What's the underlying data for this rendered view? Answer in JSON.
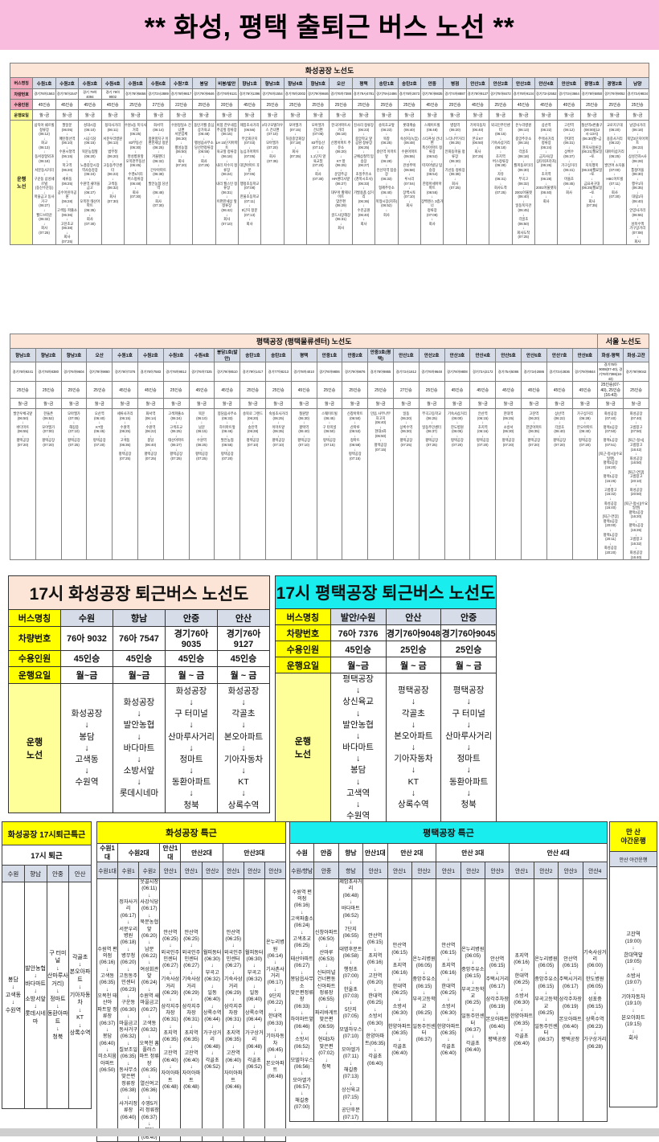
{
  "page_title": "** 화성, 평택 출퇴근 버스 노선 **",
  "labels": {
    "name": "버스명칭",
    "vehicle": "차량번호",
    "capacity": "수용인원",
    "days": "운행요일",
    "route": "운행 노선",
    "route2": "운행\n노선"
  },
  "hwaseong": {
    "title": "화성공장 노선도",
    "columns": [
      {
        "name": "수원1호",
        "vehicle": "경기76아1563",
        "capacity": "45인승",
        "days": "월~금",
        "route": "삼익아 쉐르빌 정류장\n(06:12)\n↓\n화교\n(06:13)\n↓\n동서정형외과\n(06:18)\n↓\n서문동사거리\n↓\n구운동 삼성쉐르빌\n(동신수운동)\n↓\n마을금고 동사거구\n(06:27)\n↓\n월드브라운\n(06:32)\n↓\n회사\n(07:25)"
      },
      {
        "name": "수원2호",
        "vehicle": "경기76아1547",
        "capacity": "45인승",
        "days": "월~금",
        "route": "팔달문\n(06:05)\n↓\n매탄청선역\n(06:10)\n↓\n수원시청역\n(06:15)\n↓\n학고역\n(06:20)\n↓\n세류동\n(06:25)\n↓\n공수어린이공원\n(06:28)\n↓\n고색동 파출소\n(06:36)\n↓\n고잔초교\n(06:38)\n↓\n회사\n(07:25)"
      },
      {
        "name": "수원3호",
        "vehicle": "경기 79아 4094",
        "capacity": "45인승",
        "days": "월~금",
        "route": "성대시장\n(06:10)\n↓\n시공식당\n(06:15)\n↓\n북문농협앞\n(06:20)\n↓\n노총중앙시장\n역사승강장\n(06:24)\n↓\n수원역 새마을금고\n(06:27)\n↓\n오목천 태산아파트\n(06:35)\n↓\n회사\n(07:30)"
      },
      {
        "name": "수원4호",
        "vehicle": "경기 76아 9002",
        "capacity": "45인승",
        "days": "월~금",
        "route": "정자사거리\n(06:11)\n↓\n서문우리병원\n(06:13)\n↓\n법무청\n(06:20)\n↓\n고등동주민센터\n(06:23)\n↓\n고색동\n(06:32)\n↓\n회사\n(07:30)"
      },
      {
        "name": "수원5호",
        "vehicle": "경기76아5656",
        "capacity": "25인승",
        "days": "월~금",
        "route": "수원1동 목식사거리\n(06:25)\n↓\n83부동산\n(06:30)\n↓\n명성병원앞\n오목천부동산\n(06:45)\n↓\n수영5거리\n버스정류장\n(06:48)\n↓\n회사\n(07:30)"
      },
      {
        "name": "수원6호",
        "vehicle": "경기73사2889",
        "capacity": "27인승",
        "days": "월~금",
        "route": "화서역\n(06:14)\n↓\n정원앞지구 이\n편한세상 정문\n(06:25)\n↓\n겨울팬더\n(06:32)\n↓\n간우아파트\n(06:38)\n↓\n발안농협 당선역\n(06:48)\n↓\n회사\n(07:30)"
      },
      {
        "name": "수원7호",
        "vehicle": "경기76아9817",
        "capacity": "22인승",
        "days": "월~금",
        "route": "수원정일소 건너편\n서문입체\n(06:30)\n↓\n팽성농협\n(06:50)\n↓\n회사\n(07:20)"
      },
      {
        "name": "봉담",
        "vehicle": "경기76아9646",
        "capacity": "25인승",
        "days": "월~금",
        "route": "동탄거월 중심\n상가육교\n(06:48)\n↓\n팽성읍사무소\n당선연정류장\n(06:55)\n↓\n회사\n(07:25)"
      },
      {
        "name": "비봉/발안",
        "vehicle": "경기76아9121",
        "capacity": "20인승",
        "days": "월~금",
        "route": "비봉 한우네집\n주공앞 정류장\n(06:15)\n↓\nLH 15단지아파트\n육교앞 정류장\n(06:18)\n↓\n내리 저수지 정류장\n(06:24)\n↓\n내리 월스턴 정류장\n(06:31)\n↓\n이편한세상 앞 정류장\n(06:42)\n↓\n회사\n(07:10)"
      },
      {
        "name": "향남1호",
        "vehicle": "경기76아1396",
        "capacity": "45인승",
        "days": "월~금",
        "route": "제암초사거리\n(06:56)\n↓\n무궁화단지\n(07:03)\n↓\n농심가아파트\n(07:05)\n↓\n대양아파트 후문\n(07:06)\n↓\n행정초등학교\n(07:08)\n↓\n한울초등학교\n(07:11)\n↓\n5단지 정문\n(07:13)\n↓\n회사"
      },
      {
        "name": "향남3호",
        "vehicle": "경기76아1554",
        "capacity": "25인승",
        "days": "월~금",
        "route": "2차구모델하우\n스 건너편\n(07:10)\n↓\n모아엘가\n(07:20)\n↓\n회사\n(07:35)"
      },
      {
        "name": "향남4호",
        "vehicle": "경기76아2002",
        "capacity": "25인승",
        "days": "월~금",
        "route": "모아엘가\n(07:15)\n↓\n하길중앙회장\n(07:18)\n↓\n회사\n(07:35)"
      },
      {
        "name": "향남5호",
        "vehicle": "경기76아9846",
        "capacity": "25인승",
        "days": "월~금",
        "route": "모아엘가\n건너편\n(07:08)\n↓\n83부동산\n(07:14)\n↓\n1,1단지 앞\n육교밑\n(07:20)\n↓\n회사\n(07:30)"
      },
      {
        "name": "오산",
        "vehicle": "경기76아7388",
        "capacity": "25인승",
        "days": "월~금",
        "route": "한국아파트사거리\n(06:18)\n↓\n신영아파트 주유소\n(06:20)\n↓\nKT 앞\n(06:25)\n↓\n운암주공\nHR센터사앞\n(06:27)\n↓\n대우아 황제나이트\n맞은편\n(06:29)\n↓\n골드사장해장\n(06:31)\n↓\n회사"
      },
      {
        "name": "평택",
        "vehicle": "경기79사4781",
        "capacity": "25인승",
        "days": "월~금",
        "route": "진사리 정류장\n(06:23)\n↓\n중앙학교 앞\n공원 정류장\n(06:25)\n↓\n군예삼철역 탑승장\n(06:27)\n↓\n조일주유소\n(경복시초사)\n(06:33)\n↓\n가발용품 삼거리\n(06:36)\n↓\n수진공원\n(06:40)\n↓\n회사"
      },
      {
        "name": "송탄1호",
        "vehicle": "경기79사2486",
        "capacity": "25인승",
        "days": "월~금",
        "route": "송북초교앞\n(06:23)\n↓\n복창\n(06:25)\n↓\n송탄역 이마트앞\n(06:28)\n↓\n진선지역 탑승장\n(06:33)\n↓\n형제주유소\n(06:40)\n↓\n복형시장(지하)\n(06:52)\n↓\n회사"
      },
      {
        "name": "송탄2호",
        "vehicle": "경기76아2673",
        "capacity": "25인승",
        "days": "월~금",
        "route": "롯데캐슬\n(06:40)\n↓\n숙성지(녹집)\n(06:48)\n↓\n수원아파트\n(06:55)\n↓\n관성주택\n(06:58)\n↓\n루시리\n(07:04)\n↓\n장백시토\n(07:10)\n↓\n회사"
      },
      {
        "name": "안중",
        "vehicle": "경기76아9835",
        "capacity": "45인승",
        "days": "월~금",
        "route": "스웨이트빌\n(06:48)\n↓\n스타푸실 건너편\n폭신아파트 정류장\n(06:52)\n↓\n따지아빌딩 탑승장\n(06:54)\n↓\n한정아세아아파트\n(06:55)\n↓\n장백랜스 3층거너\n정류장\n(07:08)\n↓\n회사"
      },
      {
        "name": "병점",
        "vehicle": "경기74아8887",
        "capacity": "25인승",
        "days": "월~금",
        "route": "병점역\n(06:20)\n↓\n느티나무거리\n(06:25)\n↓\n안화동마을 정류장\n(06:30)\n↓\n기산동 정류장\n(06:38)\n↓\n회사\n(07:25)"
      },
      {
        "name": "안산1호",
        "vehicle": "경기76아9127",
        "capacity": "45인승",
        "days": "월~금",
        "route": "기아자동차\n(06:40)\n↓\n본오KT\n(06:50)\n↓\n회사\n(07:25)"
      },
      {
        "name": "안산2호",
        "vehicle": "경기75아8472",
        "capacity": "25인승",
        "days": "월~금",
        "route": "외국인주민센터\n(06:15)\n↓\n기숙사삼거리\n(06:18)\n↓\n초지역\n버스정류장\n(06:28)\n↓\n자유\n(06:31)\n↓\n회사도착\n(07:25)"
      },
      {
        "name": "안산3호",
        "vehicle": "경기76아9134",
        "capacity": "45인승",
        "days": "월~금",
        "route": "온누리병원\n(06:13)\n↓\n중앙주유소\n(06:15)\n↓\n각골초\n(06:18)\n↓\n월피동로터리\n(06:30)\n↓\n부곡고\n(06:32)\n↓\n2001아울렛\n(06:40)\n↓\n일동복지관\n(06:45)\n↓\n각골초\n(06:50)\n↓\n회사도착\n(07:25)"
      },
      {
        "name": "안산4호",
        "vehicle": "경기73사2552",
        "capacity": "45인승",
        "days": "월~금",
        "route": "상산역\n(06:22)\n↓\n주택사거리\n정류장\n(06:24)\n↓\n금자사(장\n심타워프라자)\n(06:26)\n↓\n초지역\n(06:28)\n↓\n2001아울렛차\n(06:40)\n↓\n회사"
      },
      {
        "name": "안산5호",
        "vehicle": "경기73사3664",
        "capacity": "45인승",
        "days": "월~금",
        "route": "고잔역\n(06:12)\n↓\n한대역\n(06:31)\n↓\n상록수\n(06:37)\n↓\n가구상거리\n(06:41)\n↓\n마을초\n(06:45)\n↓\n회사"
      },
      {
        "name": "광명1호",
        "vehicle": "경기76아5850",
        "capacity": "25인승",
        "days": "월~금",
        "route": "철산역4번출구\n(08:00)(12시-13시)\n(06:30)월~금\n↓\n현지사정류장\n(06:21)월요일~토\n↓\n지옥행복\n(06:23)월요일~토\n↓\n금요귀구대\n(06:25)월요일~토\n↓\n회사\n(07:35)"
      },
      {
        "name": "광명2호",
        "vehicle": "경기76아9052",
        "capacity": "25인승",
        "days": "월~금",
        "route": "교로지구대\n(06:20)\n↓\n용중사거리\n(06:22)\n↓\n대야미삼거리\n(06:25)\n↓\n발안여 소자몰\n(07:00)\n↓\nHBC아트빌\n(07:11)\n↓\n회사\n(07:30)"
      },
      {
        "name": "남양",
        "vehicle": "경기73사9834",
        "capacity": "25인승",
        "days": "월~금",
        "route": "남양사거리\n(06:18)\n↓\n북양3단지아파트\n(06:23)\n↓\n삼성전자A사\n(06:28)\n↓\n통정마을\n(06:30)\n↓\n행우1차\n(06:35)\n↓\n대림1차\n(06:40)\n↓\n안양사거리\n(06:55)\n↓\n성복수액\n가구상거리\n(07:08)\n↓\n회사"
      }
    ]
  },
  "pyeongtaek": {
    "title": "평택공장 (평택물류센터) 노선도",
    "seoul_title": "서울 노선도",
    "seoul_cols": 2,
    "columns": [
      {
        "name": "향남1호",
        "vehicle": "경기76아9241",
        "capacity": "25인승",
        "days": "월~금",
        "route": "발안우체국앞\n(06:50)\n↓\n바다마트\n(06:55)\n↓\n평택공장\n(07:20)"
      },
      {
        "name": "향남2호",
        "vehicle": "경기76아8380",
        "capacity": "25인승",
        "days": "월~금",
        "route": "한들촌\n(06:52)\n↓\n모아엘가\n(07:00)\n↓\n평택공장\n(07:20)"
      },
      {
        "name": "향남3호",
        "vehicle": "경기76아9604",
        "capacity": "25인승",
        "days": "월~금",
        "route": "모아엘가\n(07:05)\n↓\n해길중\n(07:10)\n↓\n평택공장\n(07:25)"
      },
      {
        "name": "오산",
        "vehicle": "경기78아9860",
        "capacity": "25인승",
        "days": "월~금",
        "route": "오산역\n(06:40)\n↓\nKT앞\n(06:45)\n↓\n평택공장\n(07:20)"
      },
      {
        "name": "수원1호",
        "vehicle": "경기76아7376",
        "capacity": "45인승",
        "days": "월~금",
        "route": "세류사거리\n(06:15)\n↓\n수원역\n(06:25)\n↓\n고색동\n(06:35)\n↓\n평택공장\n(07:25)"
      },
      {
        "name": "수원2호",
        "vehicle": "경기76아7583",
        "capacity": "45인승",
        "days": "월~금",
        "route": "화서역\n(06:14)\n↓\n수원역\n(06:22)\n↓\n봉담\n(06:40)\n↓\n평택공장\n(07:25)"
      },
      {
        "name": "수원3호",
        "vehicle": "경기76아9812",
        "capacity": "25인승",
        "days": "월~금",
        "route": "고색파출소\n(06:24)\n↓\n고색초교\n(06:25)\n↓\n태산아파트\n(06:27)\n↓\n평택공장\n(07:25)"
      },
      {
        "name": "수원4호",
        "vehicle": "경기76아7325",
        "capacity": "45인승",
        "days": "월~금",
        "route": "북문\n(06:10)\n↓\n남문\n(06:15)\n↓\n수원역\n(06:25)\n↓\n평택공장\n(07:25)"
      },
      {
        "name": "봉담1호(발안)",
        "vehicle": "경기76아8510",
        "capacity": "45인승",
        "days": "월~금",
        "route": "봉담읍사무소\n(06:33)\n↓\n하이마트앞\n(06:46)\n↓\n발안농협\n(06:55)\n↓\n평택공장\n(07:20)"
      },
      {
        "name": "송탄1호",
        "vehicle": "경기79아1417",
        "capacity": "25인승",
        "days": "월~금",
        "route": "송북로 그랜드\n(06:20)\n↓\n송탄역\n(06:28)\n↓\n평택공장\n(07:10)"
      },
      {
        "name": "송탄2호",
        "vehicle": "경기77아8213",
        "capacity": "25인승",
        "days": "월~금",
        "route": "숙실초사거리\n(06:25)\n↓\n이마트앞\n(06:35)\n↓\n평택공장\n(07:10)"
      },
      {
        "name": "평택",
        "vehicle": "경기78아4010",
        "capacity": "45인승",
        "days": "월~금",
        "route": "칠원말\n(06:30)\n↓\n평택역\n(06:40)\n↓\n평택공장\n(07:10)"
      },
      {
        "name": "안중1호",
        "vehicle": "경기76아9806",
        "capacity": "25인승",
        "days": "월~금",
        "route": "스웨이트빌\n(06:45)\n↓\n구 터미널\n(06:50)\n↓\n평택공장\n(07:15)"
      },
      {
        "name": "안중2호",
        "vehicle": "경기76아9876",
        "capacity": "25인승",
        "days": "월~금",
        "route": "신창아파트\n(06:50)\n↓\n산마루\n(06:53)\n↓\n정마트\n(06:58)\n↓\n평택공장\n(07:15)"
      },
      {
        "name": "안중3호(평택)",
        "vehicle": "경기76아9865",
        "capacity": "25인승",
        "days": "월~금",
        "route": "만음 사무나무\n차고지\n(06:40)\n↓\n현대3차\n(06:50)\n↓\n평택공장\n(07:15)"
      },
      {
        "name": "안산1호",
        "vehicle": "경기73사1812",
        "capacity": "27인승",
        "days": "월~금",
        "route": "일동\n(06:20)\n↓\n상록수역\n(06:30)\n↓\n평택공장\n(07:25)"
      },
      {
        "name": "안산2호",
        "vehicle": "경기76아9648",
        "capacity": "25인승",
        "days": "월~금",
        "route": "부곡고등학교\n(06:25)\n↓\n일동주민센터\n(06:37)\n↓\n평택공장\n(07:25)"
      },
      {
        "name": "안산3호",
        "vehicle": "경기76아9808",
        "capacity": "45인승",
        "days": "월~금",
        "route": "기숙사삼거리\n(06:00)\n↓\n한도병원\n(06:05)\n↓\n평택공장\n(07:20)"
      },
      {
        "name": "안산4호",
        "vehicle": "경기73사2172",
        "capacity": "45인승",
        "days": "월~금",
        "route": "안산역\n(06:15)\n↓\n초지역\n(06:16)\n↓\n평택공장\n(07:20)"
      },
      {
        "name": "안산5호",
        "vehicle": "경기75사5086",
        "capacity": "45인승",
        "days": "월~금",
        "route": "한대역\n(06:25)\n↓\n소방서\n(06:30)\n↓\n평택공장\n(07:20)"
      },
      {
        "name": "안산6호",
        "vehicle": "경기73사2886",
        "capacity": "45인승",
        "days": "월~금",
        "route": "고잔역\n(06:20)\n↓\n한양아파트\n(06:35)\n↓\n평택공장\n(07:20)"
      },
      {
        "name": "안산7호",
        "vehicle": "경기73사2836",
        "capacity": "45인승",
        "days": "월~금",
        "route": "상산역\n(06:22)\n↓\n각골초\n(06:40)\n↓\n평택공장\n(07:20)"
      },
      {
        "name": "안산8호",
        "vehicle": "경기76아9844",
        "capacity": "45인승",
        "days": "월~금",
        "route": "가구상거리\n(06:28)\n↓\n본오아파트\n(06:40)\n↓\n평택공장\n(07:20)"
      },
      {
        "name": "화성-평택",
        "vehicle": "경기76아9008(07-40), 경기76아7386(16-43)",
        "capacity": "25인승(07-40), 25인승(16-43)",
        "days": "월~금",
        "route": "화성공장\n(07:40)\n↓\n평택2공장\n(07:50)\n↓\n평택1공장\n(07:51)\n\n[퇴근-정시](수요일땐)\n평택2공장\n(16:20)\n↓\n평택1공장\n(16:26)\n↓\n고름창고\n(16:32)\n↓\n화성공장\n(16:40)\n\n[퇴근-연장]\n평택2공장\n(20:00)\n↓\n평택1공장\n(20:11)\n↓\n화성공장\n(20:20)"
      },
      {
        "name": "화성-고잔",
        "vehicle": "경기76아9042",
        "capacity": "25인승",
        "days": "월~금",
        "route": "화성공장\n(07:40)\n↓\n고름창고\n(07:50)\n\n[퇴근-정시]\n고름창고\n(16:42)\n↓\n화성공장\n(16:50)\n\n[퇴근-연장]\n고름창고\n(20:10)\n↓\n화성공장\n(20:50)\n\n[퇴근-정시](수요일엔)\n평택2공장\n(16:20)\n↓\n평택1공장\n(16:26)\n↓\n고름창고\n(16:32)\n↓\n화성공장\n(16:40)"
      }
    ]
  },
  "hw17": {
    "title": "17시 화성공장 퇴근버스 노선도",
    "columns": [
      {
        "name": "수원",
        "vehicle": "76아 9032",
        "capacity": "45인승",
        "days": "월~금",
        "route": "화성공장\n↓\n봉담\n↓\n고색동\n↓\n수원역"
      },
      {
        "name": "향남",
        "vehicle": "76아 7547",
        "capacity": "45인승",
        "days": "월~금",
        "route": "화성공장\n↓\n발안농협\n↓\n바다마트\n↓\n소방서앞\n↓\n롯데시네마"
      },
      {
        "name": "안중",
        "vehicle": "경기76아9035",
        "capacity": "45인승",
        "days": "월 ~ 금",
        "route": "화성공장\n↓\n구 터미널\n↓\n산마루사거리\n↓\n정마트\n↓\n동환아파트\n↓\n청북"
      },
      {
        "name": "안산",
        "vehicle": "경기76아9127",
        "capacity": "45인승",
        "days": "월 ~ 금",
        "route": "화성공장\n↓\n각골초\n↓\n본오아파트\n↓\n기아자동차\n↓\nKT\n↓\n상록수역"
      }
    ]
  },
  "pt17": {
    "title": "17시 평택공장 퇴근버스 노선도",
    "columns": [
      {
        "name": "발안/수원",
        "vehicle": "76아 7376",
        "capacity": "45인승",
        "days": "월~금",
        "route": "평택공장\n↓\n상신육교\n↓\n발안농협\n↓\n바다마트\n↓\n봉담\n↓\n고색역\n↓\n수원역"
      },
      {
        "name": "안산",
        "vehicle": "경기76아9048",
        "capacity": "25인승",
        "days": "월 ~ 금",
        "route": "평택공장\n↓\n각골초\n↓\n본오아파트\n↓\n기아자동차\n↓\nKT\n↓\n상록수역"
      },
      {
        "name": "안중",
        "vehicle": "경기76아9045",
        "capacity": "25인승",
        "days": "월 ~ 금",
        "route": "평택공장\n↓\n구 터미널\n↓\n산마루사거리\n↓\n정마트\n↓\n동환아파트\n↓\n청북"
      }
    ]
  },
  "hw_special17": {
    "title": "화성공장 17시퇴근특근",
    "subtitle": "17시 퇴근",
    "columns": [
      {
        "name": "수원",
        "route": "봉담\n↓\n고색동\n↓\n수원역"
      },
      {
        "name": "향남",
        "route": "발안농협\n↓\n바다마트\n↓\n소방서앞\n↓\n롯데시네마"
      },
      {
        "name": "안중",
        "route": "구 터미널\n↓\n산마루사거리)\n↓\n정마트\n↓\n동환아파트\n↓\n청북"
      },
      {
        "name": "안산",
        "route": "각골초\n↓\n본오아파트\n↓\n기아자동차\n↓\nKT\n↓\n상록수역"
      }
    ]
  },
  "hw_special": {
    "title": "화성공장 특근",
    "groups": [
      {
        "label": "수원1대",
        "span": 1
      },
      {
        "label": "수원2대",
        "span": 2
      },
      {
        "label": "안산1대",
        "span": 1
      },
      {
        "label": "안산2대",
        "span": 2
      },
      {
        "label": "안산3대",
        "span": 3
      }
    ],
    "columns": [
      {
        "name": "수원1대",
        "route": "수원역 편의점\n(06:16)\n↓\n고색동\n(06:35)\n↓\n오목천 태산아\n파트앞 정류장\n(06:37)\n↓\n봉담\n(06:40)\n↓\n미소지움아파트\n(06:50)"
      },
      {
        "name": "수원1",
        "route": "정자사거리\n(06:17)\n↓\n서문우리병원\n(06:18)\n↓\n병무청\n(06:20)\n↓\n고등동주민센터\n(06:23)\n↓\n구운동\n(06:30)\n↓\n마을금고\n동사거구\n(06:32)\n↓\n칠보조일\n(06:35)\n↓\n동사무소 맞은편\n정류장\n(06:38)\n↓\n사거리정류장\n(06:40)"
      },
      {
        "name": "수원2",
        "route": "웃골시장\n(06:11)\n↓\n사강식당\n(06:17)\n↓\n북문농협앞\n(06:20)\n↓\n남문\n(06:22)\n↓\n여성회관앞\n(06:24)\n↓\n수원역 새마을금고\n(06:27)\n↓\n고색동\n(06:32)\n↓\n오목천 홈플러스\n마트 정류장\n(06:35)\n↓\n열신여고\n(06:36)\n↓\n수영5거리 정류장\n(06:37)\n↓\n봉담\n(06:40)"
      },
      {
        "name": "안산1",
        "route": "안산역\n(06:25)\n↓\n외국인주민센터\n(06:27)\n↓\n기숙사삼거리\n(06:29)\n↓\n삼각지주차장\n(06:31)\n↓\n초지역\n(06:35)\n↓\n고잔역\n(06:40)\n↓\n자이아파트\n(06:48)"
      },
      {
        "name": "안산1",
        "route": "안산역\n(06:25)\n↓\n외국인주민센터\n(06:27)\n↓\n기숙사삼거리\n(06:29)\n↓\n삼각지주차장\n(06:31)\n↓\n초지역\n(06:35)\n↓\n고잔역\n(06:40)\n↓\n자이아파트\n(06:48)"
      },
      {
        "name": "안산2",
        "route": "월피동터\n(06:30)\n↓\n부곡고\n(06:32)\n↓\n일동\n(06:40)\n↓\n상록수역\n(06:44)\n↓\n가구상거리\n(06:48)\n↓\n각골초\n(06:52)"
      },
      {
        "name": "안산1",
        "route": "안산역\n(06:25)\n↓\n외국인주민센터\n(06:27)\n↓\n기숙사삼거리\n(06:29)\n↓\n삼각지주차장\n(06:31)\n↓\n초지역\n(06:35)\n↓\n고잔역\n(06:40)\n↓\n자이아파트\n(06:46)"
      },
      {
        "name": "안산2",
        "route": "월피동터\n(06:30)\n↓\n부곡고\n(06:32)\n↓\n일동\n(06:40)\n↓\n상록수역\n(06:44)\n↓\n가구상거리\n(06:48)\n↓\n각골초\n(06:52)"
      },
      {
        "name": "안산3",
        "route": "온누리병원\n(06:14)\n↓\n기사촌사거리\n(06:17)\n↓\n9단지\n(06:22)\n↓\n한대역\n(06:33)\n↓\n기아자동차\n(06:45)\n↓\n본오아파트\n(06:48)"
      }
    ]
  },
  "pt_special": {
    "title": "평택공장 특근",
    "groups": [
      {
        "label": "수원",
        "span": 1
      },
      {
        "label": "안중",
        "span": 1
      },
      {
        "label": "향남",
        "span": 1
      },
      {
        "label": "안산1대",
        "span": 1
      },
      {
        "label": "안산 2대",
        "span": 2
      },
      {
        "label": "안산 3대",
        "span": 3
      },
      {
        "label": "안산 4대",
        "span": 4
      }
    ],
    "columns": [
      {
        "name": "수원/향남",
        "route": "수원역 편의점\n(06:16)\n↓\n고색파출소\n(06:24)\n↓\n고색초교\n(06:25)\n↓\n태산아파트\n(06:27)\n↓\n봉담읍사무소\n맞은편정류장\n(06:33)\n↓\n하이마트앞\n(06:46)\n↓\n소방서\n(06:52)\n↓\n모델하우스\n(06:56)\n↓\n모아엘가\n(06:57)\n↓\n해길중\n(07:00)"
      },
      {
        "name": "안중",
        "route": "신창아파트\n(06:50)\n↓\n산마루\n(06:53)\n↓\n신터미널\n건너편동\n신아파트\n정류장\n(06:55)\n↓\n파리바게트\n맞은편\n(06:59)\n↓\n현대3차\n맞은편\n(07:02)\n↓\n청북"
      },
      {
        "name": "향남",
        "route": "제암초사거리\n(06:48)\n↓\n바다마트\n(06:52)\n↓\n7단지\n(06:55)\n↓\n대명후문트\n(06:58)\n↓\n행정초\n(07:00)\n↓\n한울초\n(07:03)\n↓\n5단지\n(07:05)\n↓\n모델하우스\n(07:10)\n↓\n모아엘가\n(07:11)\n↓\n해길중\n(07:13)\n↓\n상신육교\n(07:15)\n↓\n공단후문\n(07:17)"
      },
      {
        "name": "안산1",
        "route": "안산역\n(06:15)\n↓\n초지역\n(06:16)\n↓\n고잔역\n(06:20)\n↓\n한대역\n(06:25)\n↓\n소방서\n(06:30)\n↓\n한양아파\n트(06:35)\n↓\n각골초\n(06:40)"
      },
      {
        "name": "안산1",
        "route": "안산역\n(06:15)\n↓\n초지역\n(06:16)\n↓\n한대역\n(06:25)\n↓\n소방서\n(06:30)\n↓\n한양아파트\n(06:35)\n↓\n각골초\n(06:40)"
      },
      {
        "name": "안산2",
        "route": "온누리병원\n(06:05)\n↓\n중앙주유소\n(06:15)\n↓\n부곡고등학교\n(06:25)\n↓\n일동주민센터\n(06:37)"
      },
      {
        "name": "안산1",
        "route": "안산역\n(06:15)\n↓\n초지역\n(06:16)\n↓\n한대역\n(06:25)\n↓\n소방서\n(06:30)\n↓\n한양아파트\n(06:35)\n↓\n각골초\n(06:40)"
      },
      {
        "name": "안산2",
        "route": "온누리병원\n(06:05)\n↓\n중앙주유소\n(06:15)\n↓\n부곡고등학교\n(06:25)\n↓\n일동주민센터\n(06:37)\n↓\n각골초\n(06:40)"
      },
      {
        "name": "안산3",
        "route": "안산역\n(06:15)\n↓\n주택시거리\n(06:17)\n↓\n삼각주차장\n(06:19)\n↓\n본오아파트\n(06:40)\n↓\n평택공장"
      },
      {
        "name": "안산1",
        "route": "초지역\n(06:16)\n↓\n한대역\n(06:25)\n↓\n소방서\n(06:30)\n↓\n한양아파트\n(06:35)\n↓\n각골초\n(06:40)"
      },
      {
        "name": "안산2",
        "route": "온누리병원\n(06:05)\n↓\n중앙주유소\n(06:15)\n↓\n부곡고등학교\n(06:25)\n↓\n일동주민센터\n(06:37)"
      },
      {
        "name": "안산3",
        "route": "안산역\n(06:15)\n↓\n주택시거리\n(06:17)\n↓\n삼각주차장\n(06:19)\n↓\n본오아파트\n(06:40)\n↓\n평택공장"
      },
      {
        "name": "안산4",
        "route": "기숙사삼거리\n(06:00)\n↓\n한도병원\n(06:05)\n↓\n성포중\n(06:15)\n↓\n상록수역\n(06:23)\n↓\n가구상거리\n(06:28)"
      }
    ]
  },
  "ansan_night": {
    "title": "만 산\n야간운행",
    "subtitle": "안산 야간운행",
    "route": "고잔역\n(19:00)\n↓\n한대역앞\n(19:05)\n↓\n소방서\n(19:07)\n↓\n기아자동차\n(19:10)\n↓\n본오아파트\n(19:15)\n↓\n회사"
  }
}
